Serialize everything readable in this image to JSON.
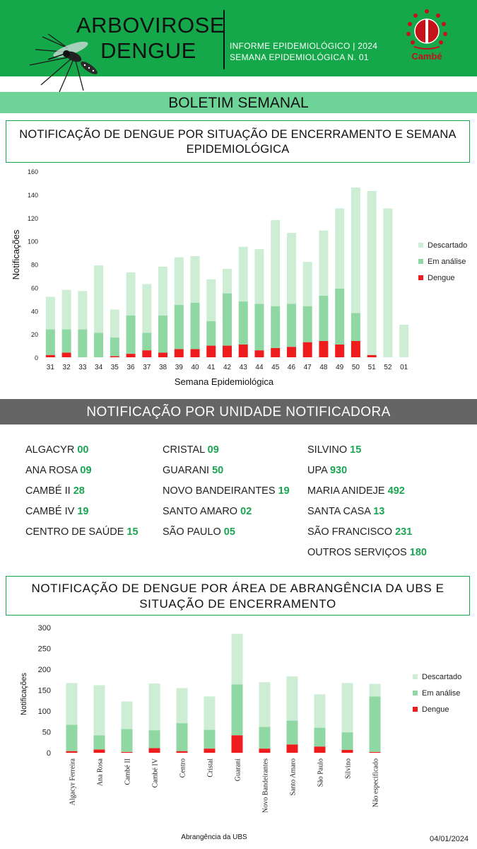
{
  "header": {
    "title_line1": "ARBOVIROSE",
    "title_line2": "DENGUE",
    "info_line1": "INFORME EPIDEMIOLÓGICO | 2024",
    "info_line2": "SEMANA EPIDEMIOLÓGICA  N. 01",
    "logo_text": "Cambé",
    "colors": {
      "green": "#14a84a",
      "light_green": "#6dd396",
      "gray_bar": "#656565",
      "logo_red": "#c3121a"
    }
  },
  "banner": {
    "label": "BOLETIM SEMANAL"
  },
  "section_units": {
    "title": "NOTIFICAÇÃO POR UNIDADE NOTIFICADORA"
  },
  "units": {
    "col1": [
      {
        "name": "ALGACYR",
        "value": "00"
      },
      {
        "name": "ANA ROSA",
        "value": "09"
      },
      {
        "name": "CAMBÉ II",
        "value": "28"
      },
      {
        "name": "CAMBÉ IV",
        "value": "19"
      },
      {
        "name": "CENTRO DE SAÚDE",
        "value": "15"
      }
    ],
    "col2": [
      {
        "name": "CRISTAL",
        "value": "09"
      },
      {
        "name": "GUARANI",
        "value": "50"
      },
      {
        "name": "NOVO BANDEIRANTES",
        "value": "19"
      },
      {
        "name": "SANTO AMARO",
        "value": "02"
      },
      {
        "name": "SÃO PAULO",
        "value": "05"
      }
    ],
    "col3": [
      {
        "name": "SILVINO",
        "value": "15"
      },
      {
        "name": "UPA",
        "value": "930"
      },
      {
        "name": "MARIA ANIDEJE",
        "value": "492"
      },
      {
        "name": "SANTA CASA",
        "value": "13"
      },
      {
        "name": "SÃO FRANCISCO",
        "value": "231"
      },
      {
        "name": "OUTROS SERVIÇOS",
        "value": "180"
      }
    ]
  },
  "footer": {
    "date": "04/01/2024"
  },
  "chart_data": [
    {
      "type": "bar",
      "stacked": true,
      "title": "NOTIFICAÇÃO DE DENGUE POR SITUAÇÃO DE ENCERRAMENTO E SEMANA EPIDEMIOLÓGICA",
      "xlabel": "Semana Epidemiológica",
      "ylabel": "Notificações",
      "ylim": [
        0,
        160
      ],
      "yticks": [
        0,
        20,
        40,
        60,
        80,
        100,
        120,
        140,
        160
      ],
      "grid": false,
      "legend_position": "right",
      "categories": [
        "31",
        "32",
        "33",
        "34",
        "35",
        "36",
        "37",
        "38",
        "39",
        "40",
        "41",
        "42",
        "43",
        "44",
        "45",
        "46",
        "47",
        "48",
        "49",
        "50",
        "51",
        "52",
        "01"
      ],
      "series": [
        {
          "name": "Dengue",
          "color": "#ee1c1c",
          "values": [
            2,
            4,
            0,
            0,
            1,
            3,
            6,
            4,
            7,
            7,
            10,
            10,
            11,
            6,
            8,
            9,
            13,
            14,
            11,
            14,
            2,
            0,
            0
          ]
        },
        {
          "name": "Em análise",
          "color": "#8fd7a3",
          "values": [
            22,
            20,
            24,
            21,
            16,
            33,
            15,
            32,
            38,
            40,
            21,
            45,
            37,
            40,
            36,
            37,
            31,
            39,
            48,
            24,
            0,
            0,
            0
          ]
        },
        {
          "name": "Descartado",
          "color": "#cdeed5",
          "values": [
            28,
            34,
            33,
            58,
            24,
            37,
            42,
            42,
            41,
            40,
            36,
            21,
            47,
            47,
            74,
            61,
            38,
            56,
            69,
            108,
            141,
            128,
            28
          ]
        }
      ]
    },
    {
      "type": "bar",
      "stacked": true,
      "title": "NOTIFICAÇÃO DE DENGUE POR ÁREA DE ABRANGÊNCIA DA UBS E SITUAÇÃO DE ENCERRAMENTO",
      "xlabel": "Abrangência da UBS",
      "ylabel": "Notificações",
      "ylim": [
        0,
        300
      ],
      "yticks": [
        0,
        50,
        100,
        150,
        200,
        250,
        300
      ],
      "grid": false,
      "legend_position": "right",
      "categories": [
        "Algacyr Ferreira",
        "Ana Rosa",
        "Cambé II",
        "Cambé IV",
        "Centro",
        "Cristal",
        "Guarani",
        "Novo Bandeirantes",
        "Santo Amaro",
        "São Paulo",
        "Silvino",
        "Não especificado"
      ],
      "series": [
        {
          "name": "Dengue",
          "color": "#ee1c1c",
          "values": [
            4,
            8,
            2,
            11,
            4,
            10,
            42,
            10,
            20,
            15,
            7,
            2
          ]
        },
        {
          "name": "Em análise",
          "color": "#8fd7a3",
          "values": [
            63,
            34,
            55,
            43,
            67,
            45,
            122,
            52,
            57,
            45,
            42,
            133
          ]
        },
        {
          "name": "Descartado",
          "color": "#cdeed5",
          "values": [
            100,
            120,
            66,
            112,
            84,
            80,
            121,
            107,
            106,
            80,
            118,
            30
          ]
        }
      ]
    }
  ]
}
